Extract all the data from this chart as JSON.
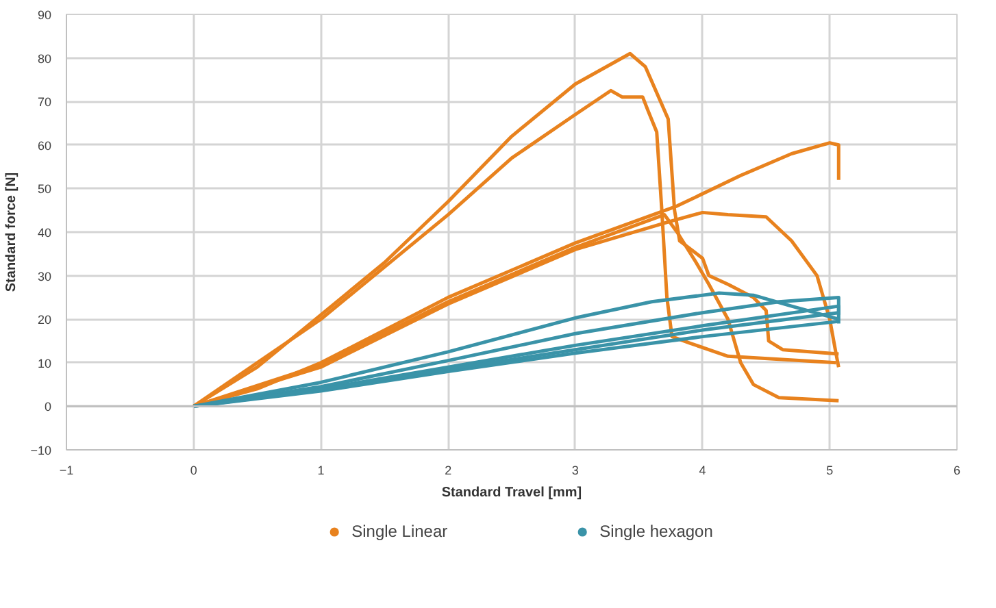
{
  "chart_data": {
    "type": "line",
    "xlabel": "Standard Travel [mm]",
    "ylabel": "Standard force [N]",
    "xlim": [
      -1,
      6
    ],
    "ylim": [
      -10,
      90
    ],
    "xticks": [
      -1,
      0,
      1,
      2,
      3,
      4,
      5,
      6
    ],
    "yticks": [
      -10,
      0,
      10,
      20,
      30,
      40,
      50,
      60,
      70,
      80,
      90
    ],
    "grid": true,
    "legend": "bottom",
    "marker": "none",
    "line_style": "solid",
    "series": [
      {
        "name": "Single Linear",
        "color": "#e8821e",
        "x": [
          0,
          0.5,
          1,
          1.5,
          2,
          2.5,
          3,
          3.43,
          3.55,
          3.73,
          3.78,
          3.82,
          4.0,
          4.05,
          4.2,
          4.4,
          4.5,
          4.52,
          4.63,
          5.07
        ],
        "values": [
          0,
          9,
          21,
          33,
          47,
          62,
          74,
          81,
          78,
          66,
          45,
          38,
          34,
          30,
          28,
          25,
          22,
          15,
          13,
          12
        ]
      },
      {
        "color": "#e8821e",
        "x": [
          0,
          1,
          2,
          2.5,
          3,
          3.28,
          3.37,
          3.53,
          3.57,
          3.64,
          3.68,
          3.72,
          3.76,
          3.9,
          4.2,
          5.05
        ],
        "values": [
          0,
          20,
          44,
          57,
          67,
          72.5,
          71,
          71,
          68,
          63,
          45,
          25,
          16,
          14.5,
          11.5,
          10
        ]
      },
      {
        "color": "#e8821e",
        "x": [
          0,
          0.5,
          1,
          2,
          3,
          3.8,
          4.3,
          4.7,
          5.0,
          5.07,
          5.07
        ],
        "values": [
          0,
          4,
          10,
          25,
          37.5,
          46,
          53,
          58,
          60.5,
          60,
          52
        ]
      },
      {
        "color": "#e8821e",
        "x": [
          0,
          1,
          2,
          3,
          3.75,
          4.0,
          4.2,
          4.5,
          4.7,
          4.9,
          5.0,
          5.05,
          5.07
        ],
        "values": [
          0,
          9,
          23.5,
          36,
          42.5,
          44.5,
          44,
          43.5,
          38,
          30,
          20,
          12,
          9
        ]
      },
      {
        "color": "#e8821e",
        "x": [
          0,
          1,
          2,
          3,
          3.7,
          3.8,
          3.95,
          4.05,
          4.2,
          4.3,
          4.4,
          4.6,
          5.07
        ],
        "values": [
          0,
          9.5,
          24,
          36.5,
          44,
          40,
          33,
          28,
          20,
          10,
          5,
          2,
          1.3
        ]
      },
      {
        "name": "Single hexagon",
        "color": "#3a93a8",
        "x": [
          0,
          1,
          2,
          3,
          3.6,
          4.13,
          4.4,
          4.7,
          5.07
        ],
        "values": [
          0,
          5.5,
          12.5,
          20.3,
          24,
          26,
          25.5,
          23,
          20
        ]
      },
      {
        "color": "#3a93a8",
        "x": [
          0,
          1,
          2,
          3,
          4,
          4.6,
          5.07,
          5.07
        ],
        "values": [
          0,
          4.5,
          10.5,
          16.7,
          21.5,
          24,
          25,
          21
        ]
      },
      {
        "color": "#3a93a8",
        "x": [
          0,
          1,
          2,
          3,
          4,
          5.07,
          5.07
        ],
        "values": [
          0,
          4,
          9,
          14,
          18.5,
          23,
          19
        ]
      },
      {
        "color": "#3a93a8",
        "x": [
          0,
          1,
          2,
          3,
          4,
          5.07
        ],
        "values": [
          0,
          3.5,
          8,
          12.2,
          16,
          19.5
        ]
      },
      {
        "color": "#3a93a8",
        "x": [
          0,
          1,
          2,
          3,
          4,
          5.07
        ],
        "values": [
          0,
          3.8,
          8.5,
          13,
          17.5,
          21.5
        ]
      }
    ]
  }
}
